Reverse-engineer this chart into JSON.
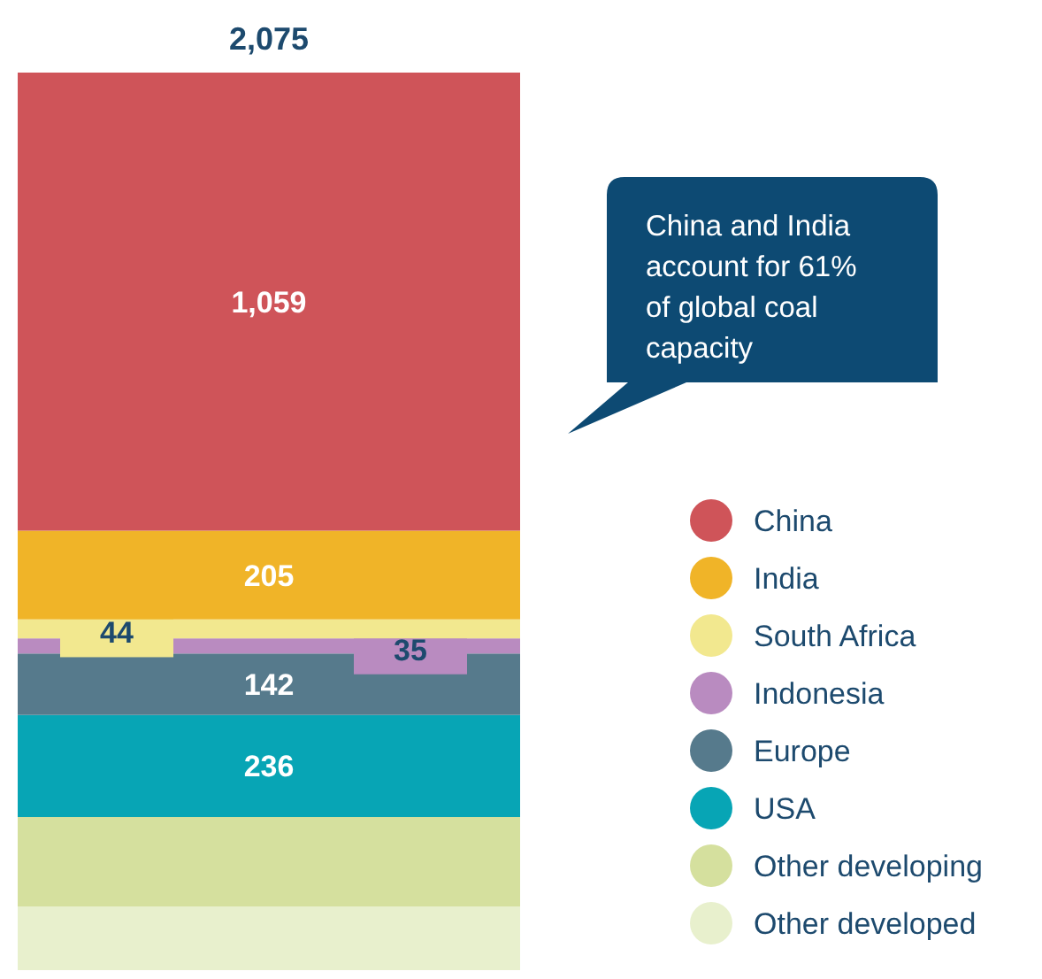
{
  "chart_data": {
    "type": "bar",
    "stacked": true,
    "categories": [
      null
    ],
    "series": [
      {
        "name": "Other developed",
        "color": "#e8f0cd",
        "values": [
          147
        ],
        "value_labels": [
          null
        ]
      },
      {
        "name": "Other developing",
        "color": "#d5e09e",
        "values": [
          207
        ],
        "value_labels": [
          null
        ]
      },
      {
        "name": "USA",
        "color": "#07a5b5",
        "values": [
          236
        ],
        "value_labels": [
          "236"
        ]
      },
      {
        "name": "Europe",
        "color": "#567a8c",
        "values": [
          142
        ],
        "value_labels": [
          "142"
        ]
      },
      {
        "name": "Indonesia",
        "color": "#b98bc0",
        "values": [
          35
        ],
        "value_labels": [
          "35"
        ]
      },
      {
        "name": "South Africa",
        "color": "#f2e88f",
        "values": [
          44
        ],
        "value_labels": [
          "44"
        ]
      },
      {
        "name": "India",
        "color": "#f0b428",
        "values": [
          205
        ],
        "value_labels": [
          "205"
        ]
      },
      {
        "name": "China",
        "color": "#cf5459",
        "values": [
          1059
        ],
        "value_labels": [
          "1,059"
        ]
      }
    ],
    "totals": [
      "2,075"
    ],
    "annotations": [
      "China and India account for 61% of global coal capacity"
    ],
    "legend": "right"
  }
}
